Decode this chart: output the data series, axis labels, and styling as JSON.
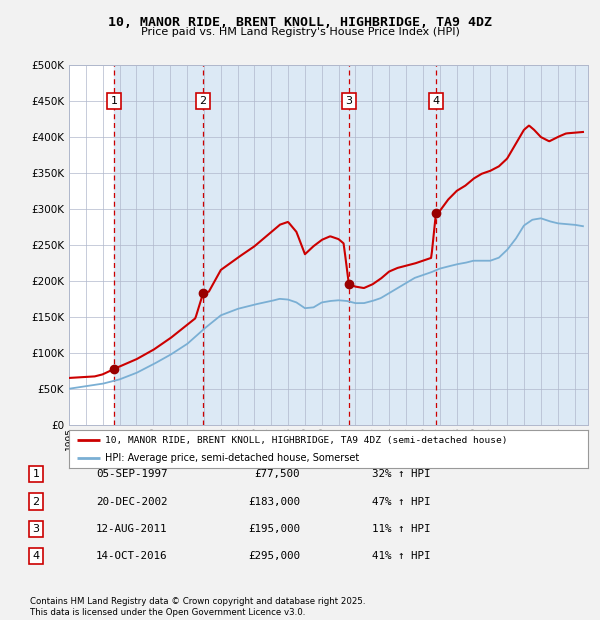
{
  "title": "10, MANOR RIDE, BRENT KNOLL, HIGHBRIDGE, TA9 4DZ",
  "subtitle": "Price paid vs. HM Land Registry's House Price Index (HPI)",
  "legend_line1": "10, MANOR RIDE, BRENT KNOLL, HIGHBRIDGE, TA9 4DZ (semi-detached house)",
  "legend_line2": "HPI: Average price, semi-detached house, Somerset",
  "transactions": [
    {
      "label": "1",
      "date": "05-SEP-1997",
      "price": 77500,
      "hpi_pct": "32% ↑ HPI",
      "year": 1997.67
    },
    {
      "label": "2",
      "date": "20-DEC-2002",
      "price": 183000,
      "hpi_pct": "47% ↑ HPI",
      "year": 2002.96
    },
    {
      "label": "3",
      "date": "12-AUG-2011",
      "price": 195000,
      "hpi_pct": "11% ↑ HPI",
      "year": 2011.61
    },
    {
      "label": "4",
      "date": "14-OCT-2016",
      "price": 295000,
      "hpi_pct": "41% ↑ HPI",
      "year": 2016.78
    }
  ],
  "footnote1": "Contains HM Land Registry data © Crown copyright and database right 2025.",
  "footnote2": "This data is licensed under the Open Government Licence v3.0.",
  "property_color": "#cc0000",
  "hpi_color": "#7aafd4",
  "shade_color": "#dce9f5",
  "plot_bg": "#ffffff",
  "grid_color": "#b0b8cc",
  "fig_bg": "#f2f2f2",
  "ylim": [
    0,
    500000
  ],
  "yticks": [
    0,
    50000,
    100000,
    150000,
    200000,
    250000,
    300000,
    350000,
    400000,
    450000,
    500000
  ],
  "xmin": 1995.0,
  "xmax": 2025.8,
  "hpi_keypoints": [
    [
      1995.0,
      50000
    ],
    [
      1996.0,
      53500
    ],
    [
      1997.0,
      57000
    ],
    [
      1998.0,
      63000
    ],
    [
      1999.0,
      72000
    ],
    [
      2000.0,
      84000
    ],
    [
      2001.0,
      97000
    ],
    [
      2002.0,
      112000
    ],
    [
      2003.0,
      133000
    ],
    [
      2004.0,
      152000
    ],
    [
      2005.0,
      161000
    ],
    [
      2006.0,
      167000
    ],
    [
      2007.0,
      172000
    ],
    [
      2007.5,
      175000
    ],
    [
      2008.0,
      174000
    ],
    [
      2008.5,
      170000
    ],
    [
      2009.0,
      162000
    ],
    [
      2009.5,
      163000
    ],
    [
      2010.0,
      170000
    ],
    [
      2010.5,
      172000
    ],
    [
      2011.0,
      173000
    ],
    [
      2011.5,
      172000
    ],
    [
      2012.0,
      169000
    ],
    [
      2012.5,
      169000
    ],
    [
      2013.0,
      172000
    ],
    [
      2013.5,
      176000
    ],
    [
      2014.0,
      183000
    ],
    [
      2014.5,
      190000
    ],
    [
      2015.0,
      197000
    ],
    [
      2015.5,
      204000
    ],
    [
      2016.0,
      208000
    ],
    [
      2016.5,
      212000
    ],
    [
      2017.0,
      217000
    ],
    [
      2017.5,
      220000
    ],
    [
      2018.0,
      223000
    ],
    [
      2018.5,
      225000
    ],
    [
      2019.0,
      228000
    ],
    [
      2019.5,
      228000
    ],
    [
      2020.0,
      228000
    ],
    [
      2020.5,
      232000
    ],
    [
      2021.0,
      243000
    ],
    [
      2021.5,
      258000
    ],
    [
      2022.0,
      277000
    ],
    [
      2022.5,
      285000
    ],
    [
      2023.0,
      287000
    ],
    [
      2023.5,
      283000
    ],
    [
      2024.0,
      280000
    ],
    [
      2024.5,
      279000
    ],
    [
      2025.0,
      278000
    ],
    [
      2025.5,
      276000
    ]
  ],
  "prop_keypoints": [
    [
      1995.0,
      65000
    ],
    [
      1996.5,
      67000
    ],
    [
      1997.0,
      70000
    ],
    [
      1997.67,
      77500
    ],
    [
      1998.2,
      83000
    ],
    [
      1999.0,
      91000
    ],
    [
      2000.0,
      104000
    ],
    [
      2001.0,
      120000
    ],
    [
      2002.5,
      148000
    ],
    [
      2002.96,
      183000
    ],
    [
      2003.3,
      185000
    ],
    [
      2004.0,
      215000
    ],
    [
      2005.0,
      232000
    ],
    [
      2006.0,
      248000
    ],
    [
      2007.0,
      268000
    ],
    [
      2007.5,
      278000
    ],
    [
      2008.0,
      282000
    ],
    [
      2008.5,
      268000
    ],
    [
      2009.0,
      237000
    ],
    [
      2009.5,
      248000
    ],
    [
      2010.0,
      257000
    ],
    [
      2010.5,
      262000
    ],
    [
      2011.0,
      258000
    ],
    [
      2011.3,
      252000
    ],
    [
      2011.61,
      195000
    ],
    [
      2012.0,
      192000
    ],
    [
      2012.5,
      190000
    ],
    [
      2013.0,
      195000
    ],
    [
      2013.5,
      203000
    ],
    [
      2014.0,
      213000
    ],
    [
      2014.5,
      218000
    ],
    [
      2015.0,
      221000
    ],
    [
      2015.5,
      224000
    ],
    [
      2016.0,
      228000
    ],
    [
      2016.5,
      232000
    ],
    [
      2016.78,
      295000
    ],
    [
      2017.0,
      297000
    ],
    [
      2017.5,
      313000
    ],
    [
      2018.0,
      325000
    ],
    [
      2018.5,
      332000
    ],
    [
      2019.0,
      342000
    ],
    [
      2019.5,
      349000
    ],
    [
      2020.0,
      353000
    ],
    [
      2020.5,
      359000
    ],
    [
      2021.0,
      370000
    ],
    [
      2021.5,
      390000
    ],
    [
      2022.0,
      410000
    ],
    [
      2022.3,
      416000
    ],
    [
      2022.6,
      410000
    ],
    [
      2023.0,
      400000
    ],
    [
      2023.5,
      394000
    ],
    [
      2024.0,
      400000
    ],
    [
      2024.5,
      405000
    ],
    [
      2025.0,
      406000
    ],
    [
      2025.5,
      407000
    ]
  ]
}
